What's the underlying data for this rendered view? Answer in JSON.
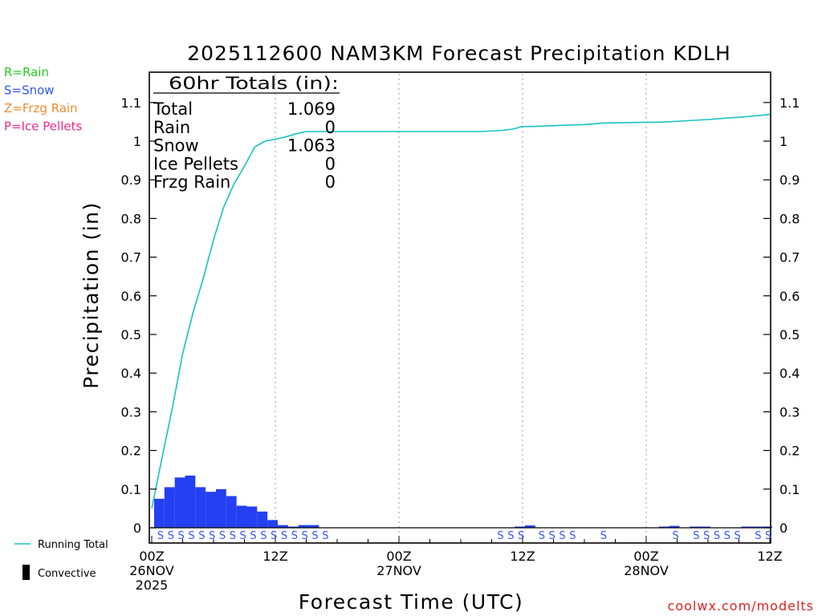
{
  "chart_data": {
    "type": "bar",
    "title": "2025112600 NAM3KM Forecast Precipitation KDLH",
    "xlabel": "Forecast Time (UTC)",
    "ylabel": "Precipitation (in)",
    "ylim": [
      0,
      1.15
    ],
    "xlim": [
      0,
      60
    ],
    "y_ticks": [
      0,
      0.1,
      0.2,
      0.3,
      0.4,
      0.5,
      0.6,
      0.7,
      0.8,
      0.9,
      1,
      1.1
    ],
    "y_tick_labels": [
      "0",
      "0.1",
      "0.2",
      "0.3",
      "0.4",
      "0.5",
      "0.6",
      "0.7",
      "0.8",
      "0.9",
      "1",
      "1.1"
    ],
    "x_ticks": [
      {
        "hour": 0,
        "line1": "00Z",
        "line2": "26NOV",
        "line3": "2025"
      },
      {
        "hour": 12,
        "line1": "12Z",
        "line2": "",
        "line3": ""
      },
      {
        "hour": 24,
        "line1": "00Z",
        "line2": "27NOV",
        "line3": ""
      },
      {
        "hour": 36,
        "line1": "12Z",
        "line2": "",
        "line3": ""
      },
      {
        "hour": 48,
        "line1": "00Z",
        "line2": "28NOV",
        "line3": ""
      },
      {
        "hour": 60,
        "line1": "12Z",
        "line2": "",
        "line3": ""
      }
    ],
    "hourly_precip": [
      0.075,
      0.105,
      0.13,
      0.135,
      0.105,
      0.093,
      0.1,
      0.082,
      0.057,
      0.055,
      0.042,
      0.02,
      0.007,
      0.002,
      0.007,
      0.007,
      0,
      0,
      0,
      0,
      0,
      0,
      0,
      0,
      0,
      0,
      0,
      0,
      0,
      0,
      0,
      0,
      0,
      0,
      0,
      0.001,
      0.006,
      0,
      0,
      0,
      0,
      0,
      0,
      0,
      0,
      0,
      0,
      0,
      0,
      0.001,
      0.005,
      0,
      0.001,
      0.001,
      0,
      0,
      0,
      0.001,
      0.001,
      0.001
    ],
    "running_total": {
      "name": "Running Total",
      "x": [
        0,
        1,
        2,
        3,
        4,
        5,
        6,
        7,
        8,
        9,
        10,
        11,
        12,
        13,
        14,
        15,
        16,
        18,
        20,
        24,
        28,
        30,
        32,
        34,
        35,
        36,
        37,
        38,
        40,
        42,
        44,
        46,
        48,
        49,
        50,
        52,
        54,
        56,
        58,
        60
      ],
      "y": [
        0.05,
        0.18,
        0.31,
        0.45,
        0.555,
        0.645,
        0.745,
        0.83,
        0.89,
        0.935,
        0.985,
        1.0,
        1.005,
        1.011,
        1.019,
        1.025,
        1.025,
        1.025,
        1.025,
        1.025,
        1.025,
        1.025,
        1.025,
        1.028,
        1.031,
        1.038,
        1.038,
        1.039,
        1.041,
        1.043,
        1.047,
        1.048,
        1.049,
        1.049,
        1.05,
        1.053,
        1.056,
        1.06,
        1.064,
        1.069
      ]
    },
    "ptype_markers": [
      {
        "hour": 0,
        "type": "S"
      },
      {
        "hour": 1,
        "type": "S"
      },
      {
        "hour": 2,
        "type": "S"
      },
      {
        "hour": 3,
        "type": "S"
      },
      {
        "hour": 4,
        "type": "S"
      },
      {
        "hour": 5,
        "type": "S"
      },
      {
        "hour": 6,
        "type": "S"
      },
      {
        "hour": 7,
        "type": "S"
      },
      {
        "hour": 8,
        "type": "S"
      },
      {
        "hour": 9,
        "type": "S"
      },
      {
        "hour": 10,
        "type": "S"
      },
      {
        "hour": 11,
        "type": "S"
      },
      {
        "hour": 12,
        "type": "S"
      },
      {
        "hour": 13,
        "type": "S"
      },
      {
        "hour": 14,
        "type": "S"
      },
      {
        "hour": 15,
        "type": "S"
      },
      {
        "hour": 16,
        "type": "S"
      },
      {
        "hour": 33,
        "type": "S"
      },
      {
        "hour": 34,
        "type": "S"
      },
      {
        "hour": 35,
        "type": "S"
      },
      {
        "hour": 37,
        "type": "S"
      },
      {
        "hour": 38,
        "type": "S"
      },
      {
        "hour": 39,
        "type": "S"
      },
      {
        "hour": 40,
        "type": "S"
      },
      {
        "hour": 43,
        "type": "S"
      },
      {
        "hour": 50,
        "type": "S"
      },
      {
        "hour": 52,
        "type": "S"
      },
      {
        "hour": 53,
        "type": "S"
      },
      {
        "hour": 54,
        "type": "S"
      },
      {
        "hour": 55,
        "type": "S"
      },
      {
        "hour": 56,
        "type": "S"
      },
      {
        "hour": 58,
        "type": "S"
      },
      {
        "hour": 59,
        "type": "S"
      }
    ],
    "totals_box": {
      "header": "60hr Totals (in):",
      "rows": [
        {
          "label": "Total",
          "value": "1.069"
        },
        {
          "label": "Rain",
          "value": "0"
        },
        {
          "label": "Snow",
          "value": "1.063"
        },
        {
          "label": "Ice Pellets",
          "value": "0"
        },
        {
          "label": "Frzg Rain",
          "value": "0"
        }
      ]
    },
    "ptype_legend": [
      {
        "text": "R=Rain",
        "color": "#22cc22"
      },
      {
        "text": "S=Snow",
        "color": "#3355ee"
      },
      {
        "text": "Z=Frzg Rain",
        "color": "#f08a30"
      },
      {
        "text": "P=Ice Pellets",
        "color": "#ee2a88"
      }
    ],
    "bottom_legend": {
      "running_total": "Running Total",
      "convective": "Convective"
    },
    "credit": "coolwx.com/modelts",
    "colors": {
      "bars": "#2440f2",
      "running_total": "#18c2c2",
      "snow_marker": "#3355ee",
      "credit": "#dd2222",
      "gridline": "#999999"
    }
  }
}
